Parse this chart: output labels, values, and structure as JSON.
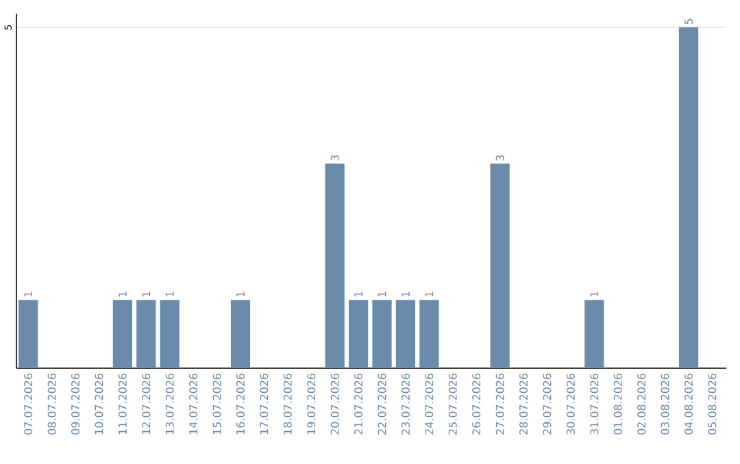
{
  "chart_data": {
    "type": "bar",
    "categories": [
      "07.07.2026",
      "08.07.2026",
      "09.07.2026",
      "10.07.2026",
      "11.07.2026",
      "12.07.2026",
      "13.07.2026",
      "14.07.2026",
      "15.07.2026",
      "16.07.2026",
      "17.07.2026",
      "18.07.2026",
      "19.07.2026",
      "20.07.2026",
      "21.07.2026",
      "22.07.2026",
      "23.07.2026",
      "24.07.2026",
      "25.07.2026",
      "26.07.2026",
      "27.07.2026",
      "28.07.2026",
      "29.07.2026",
      "30.07.2026",
      "31.07.2026",
      "01.08.2026",
      "02.08.2026",
      "03.08.2026",
      "04.08.2026",
      "05.08.2026"
    ],
    "values": [
      1,
      0,
      0,
      0,
      1,
      1,
      1,
      0,
      0,
      1,
      0,
      0,
      0,
      3,
      1,
      1,
      1,
      1,
      0,
      0,
      3,
      0,
      0,
      0,
      1,
      0,
      0,
      0,
      5,
      0
    ],
    "value_labels": [
      "1",
      null,
      null,
      null,
      "1",
      "1",
      "1",
      null,
      null,
      "1",
      null,
      null,
      null,
      "3",
      "1",
      "1",
      "1",
      "1",
      null,
      null,
      "3",
      null,
      null,
      null,
      "1",
      null,
      null,
      null,
      "5",
      null
    ],
    "color": "#6a8caa",
    "ylim": [
      0,
      5.2
    ],
    "yticks": [
      5
    ],
    "grid": "y"
  }
}
